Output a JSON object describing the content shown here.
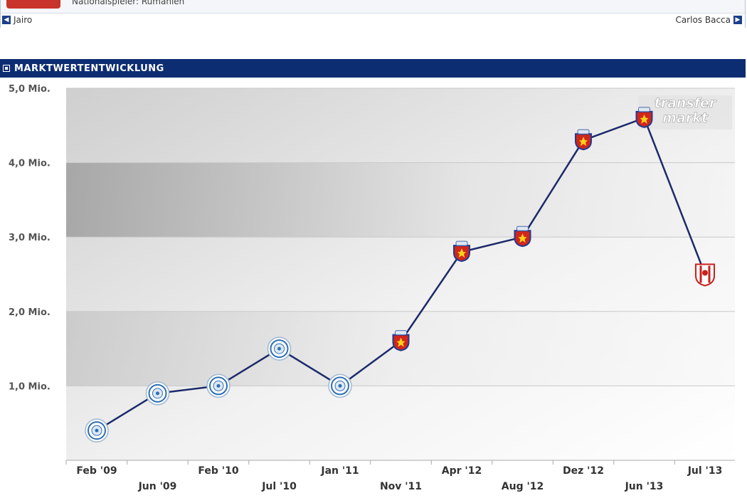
{
  "profile": {
    "nationality_line": "Nationalspieler: Rumänien",
    "prev_player": "Jairo",
    "next_player": "Carlos Bacca"
  },
  "panel": {
    "title": "MARKTWERTENTWICKLUNG"
  },
  "watermark": {
    "line1": "transfer",
    "line2": "markt"
  },
  "chart_data": {
    "type": "line",
    "yticks": [
      "1,0 Mio.",
      "2,0 Mio.",
      "3,0 Mio.",
      "4,0 Mio.",
      "5,0 Mio."
    ],
    "ylim": [
      0,
      5
    ],
    "grid": true,
    "categories": [
      "Feb '09",
      "Jun '09",
      "Feb '10",
      "Jul '10",
      "Jan '11",
      "Nov '11",
      "Apr '12",
      "Aug '12",
      "Dez '12",
      "Jun '13",
      "Jul '13"
    ],
    "series": [
      {
        "values": [
          0.4,
          0.9,
          1.0,
          1.5,
          1.0,
          1.6,
          2.8,
          3.0,
          4.3,
          4.6,
          2.5
        ],
        "clubs": [
          "club-a",
          "club-a",
          "club-a",
          "club-a",
          "club-a",
          "club-b",
          "club-b",
          "club-b",
          "club-b",
          "club-b",
          "club-c"
        ]
      }
    ],
    "colors": {
      "line": "#1c2a6b",
      "grid": "#c9c9c9",
      "club_a": "#2f6fb0",
      "club_b_red": "#d0261c",
      "club_b_blue": "#1f3b94",
      "club_c": "#c8211b"
    }
  }
}
